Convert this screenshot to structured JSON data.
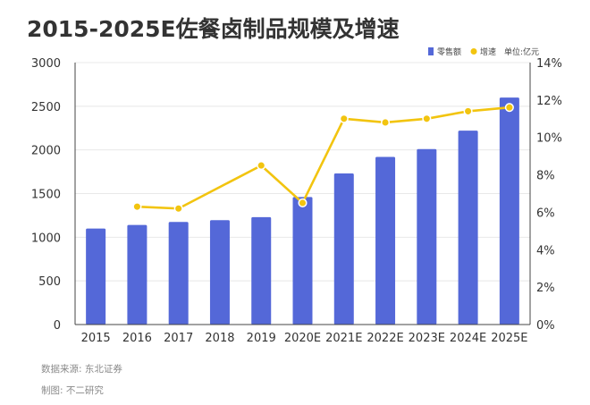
{
  "chart_data": {
    "type": "bar+line",
    "title": "2015-2025E佐餐卤制品规模及增速",
    "categories": [
      "2015",
      "2016",
      "2017",
      "2018",
      "2019",
      "2020E",
      "2021E",
      "2022E",
      "2023E",
      "2024E",
      "2025E"
    ],
    "series": [
      {
        "name": "零售额",
        "type": "bar",
        "axis": "left",
        "values": [
          1100,
          1140,
          1175,
          1195,
          1230,
          1460,
          1730,
          1920,
          2010,
          2220,
          2600
        ]
      },
      {
        "name": "增速",
        "type": "line",
        "axis": "right",
        "values": [
          null,
          6.3,
          6.2,
          null,
          8.5,
          6.5,
          11.0,
          10.8,
          11.0,
          11.4,
          11.6
        ]
      }
    ],
    "unit_note": "单位:亿元",
    "y_left": {
      "min": 0,
      "max": 3000,
      "ticks": [
        0,
        500,
        1000,
        1500,
        2000,
        2500,
        3000
      ]
    },
    "y_right": {
      "min": 0,
      "max": 14,
      "ticks": [
        0,
        2,
        4,
        6,
        8,
        10,
        12,
        14
      ],
      "tick_suffix": "%"
    },
    "legend_position": "top-right",
    "grid": "horizontal",
    "colors": {
      "bar": "#5468d8",
      "line": "#f2c40f",
      "marker_fill": "#f2c40f",
      "marker_stroke": "#ffffff"
    }
  },
  "footer": {
    "source": "数据来源: 东北证券",
    "credit": "制图: 不二研究"
  }
}
